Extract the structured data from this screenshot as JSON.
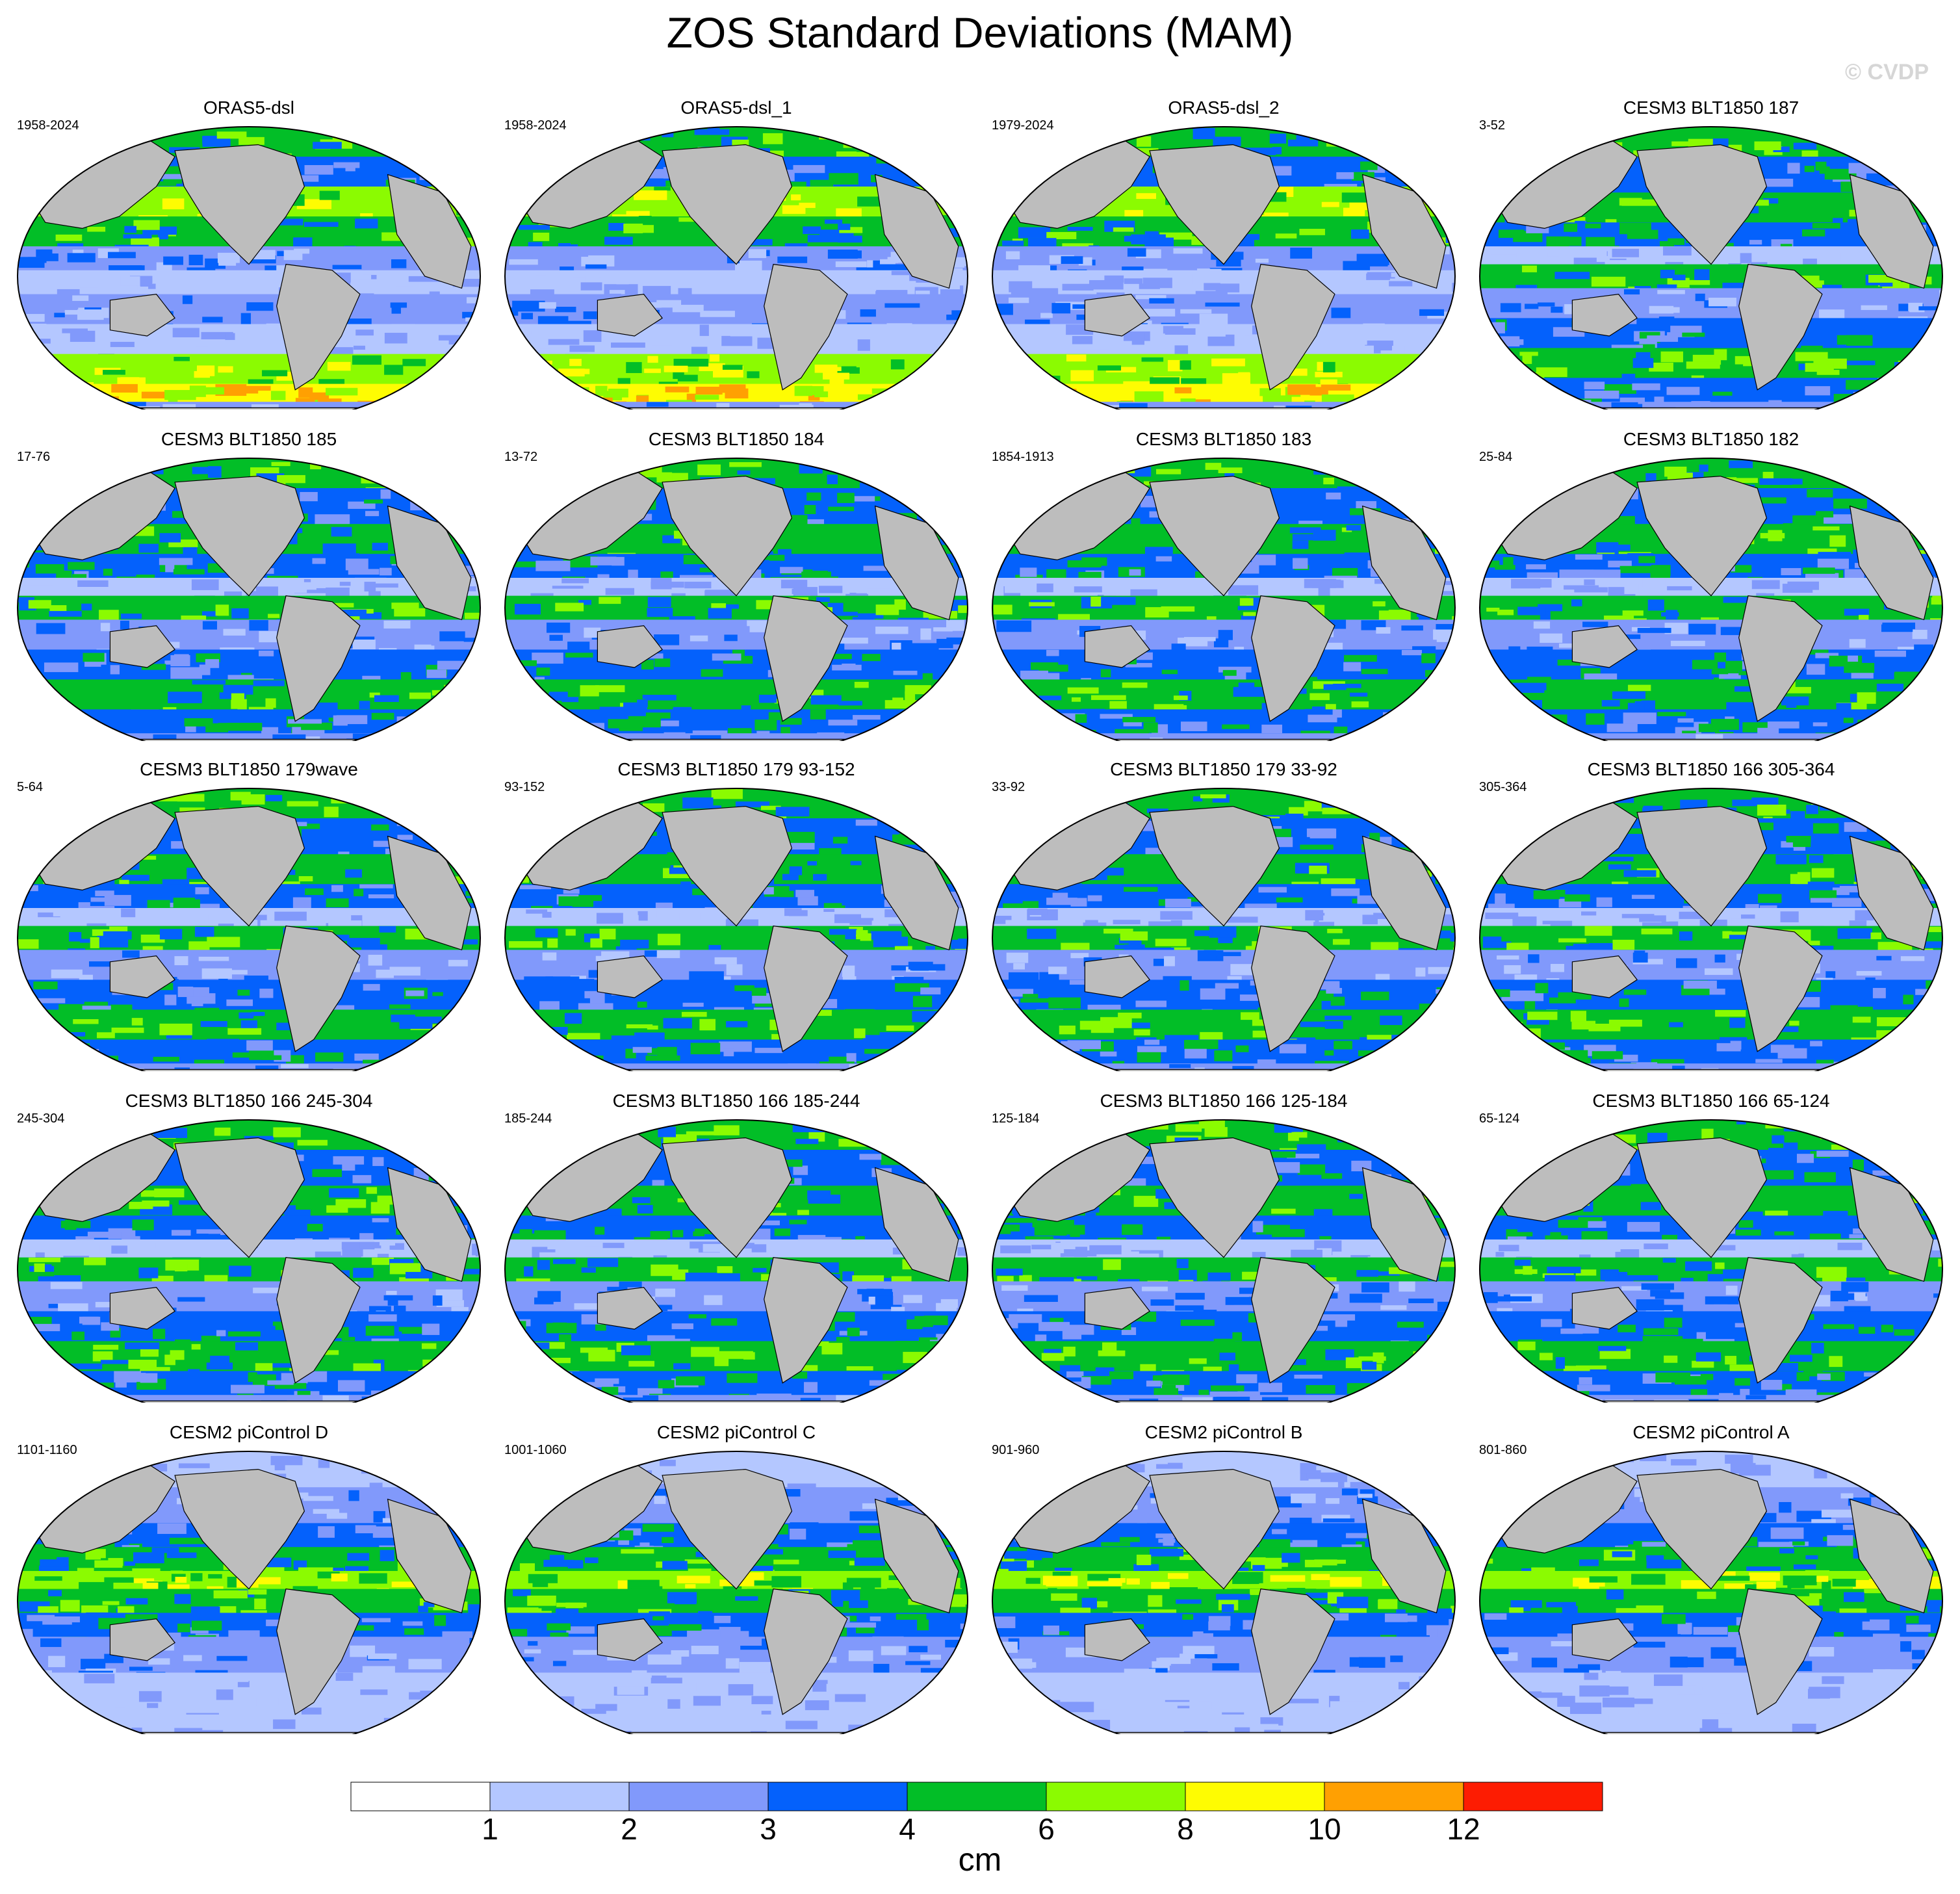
{
  "title": "ZOS Standard Deviations (MAM)",
  "watermark": "© CVDP",
  "panels": [
    {
      "title": "ORAS5-dsl",
      "years": "1958-2024",
      "style": "obs"
    },
    {
      "title": "ORAS5-dsl_1",
      "years": "1958-2024",
      "style": "obs"
    },
    {
      "title": "ORAS5-dsl_2",
      "years": "1979-2024",
      "style": "obs"
    },
    {
      "title": "CESM3 BLT1850 187",
      "years": "3-52",
      "style": "cesm3"
    },
    {
      "title": "CESM3 BLT1850 185",
      "years": "17-76",
      "style": "cesm3"
    },
    {
      "title": "CESM3 BLT1850 184",
      "years": "13-72",
      "style": "cesm3"
    },
    {
      "title": "CESM3 BLT1850 183",
      "years": "1854-1913",
      "style": "cesm3"
    },
    {
      "title": "CESM3 BLT1850 182",
      "years": "25-84",
      "style": "cesm3"
    },
    {
      "title": "CESM3 BLT1850 179wave",
      "years": "5-64",
      "style": "cesm3"
    },
    {
      "title": "CESM3 BLT1850 179 93-152",
      "years": "93-152",
      "style": "cesm3"
    },
    {
      "title": "CESM3 BLT1850 179 33-92",
      "years": "33-92",
      "style": "cesm3"
    },
    {
      "title": "CESM3 BLT1850 166 305-364",
      "years": "305-364",
      "style": "cesm3"
    },
    {
      "title": "CESM3 BLT1850 166 245-304",
      "years": "245-304",
      "style": "cesm3"
    },
    {
      "title": "CESM3 BLT1850 166 185-244",
      "years": "185-244",
      "style": "cesm3"
    },
    {
      "title": "CESM3 BLT1850 166 125-184",
      "years": "125-184",
      "style": "cesm3"
    },
    {
      "title": "CESM3 BLT1850 166 65-124",
      "years": "65-124",
      "style": "cesm3"
    },
    {
      "title": "CESM2 piControl D",
      "years": "1101-1160",
      "style": "cesm2"
    },
    {
      "title": "CESM2 piControl C",
      "years": "1001-1060",
      "style": "cesm2"
    },
    {
      "title": "CESM2 piControl B",
      "years": "901-960",
      "style": "cesm2"
    },
    {
      "title": "CESM2 piControl A",
      "years": "801-860",
      "style": "cesm2"
    }
  ],
  "colorbar": {
    "colors": [
      "#ffffff",
      "#b4c7ff",
      "#8199fb",
      "#0461fc",
      "#02be27",
      "#8bfb01",
      "#fefc02",
      "#ffa002",
      "#fd1c02"
    ],
    "labels": [
      "1",
      "2",
      "3",
      "4",
      "6",
      "8",
      "10",
      "12"
    ],
    "unit": "cm"
  },
  "colors": {
    "land": "#bdbdbd",
    "outline": "#000000"
  }
}
